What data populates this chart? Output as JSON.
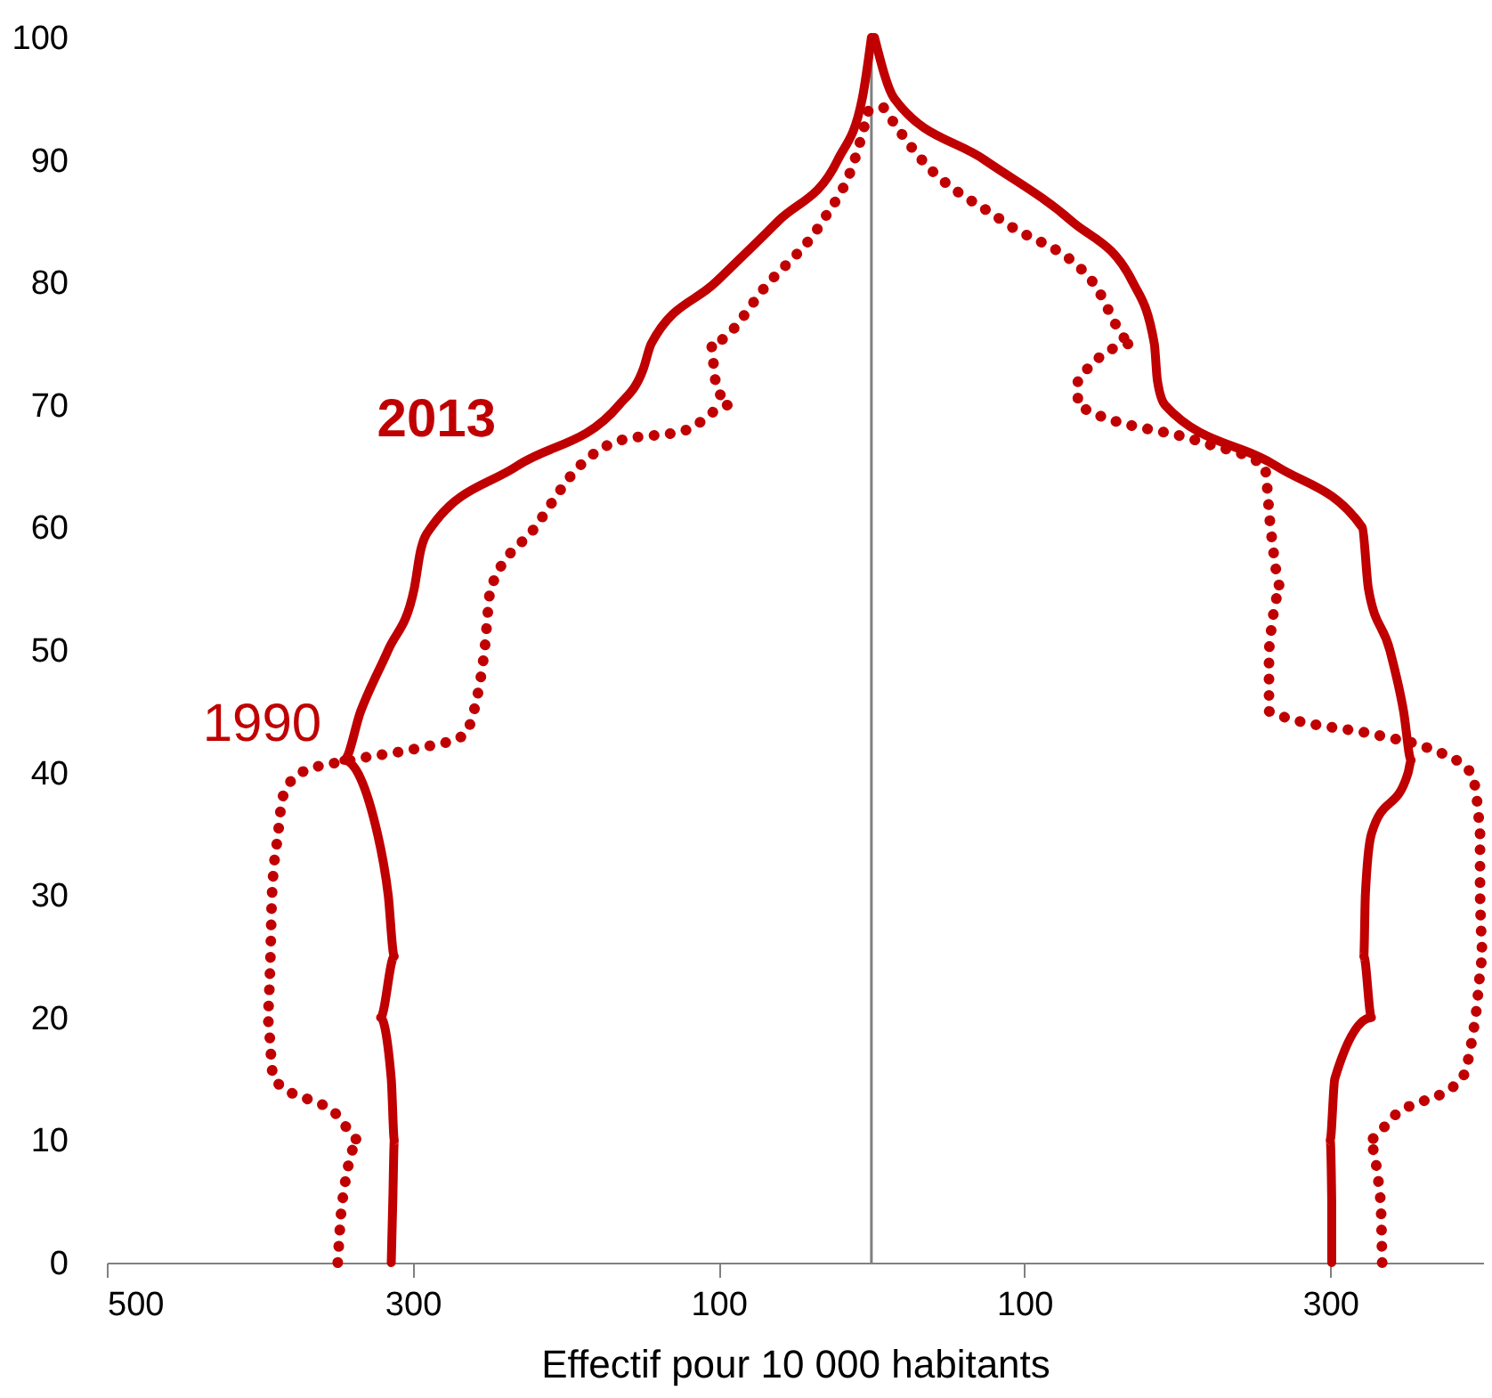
{
  "chart_data": {
    "type": "line",
    "xlabel": "Effectif pour 10 000 habitants",
    "xlim": [
      -500,
      400
    ],
    "xticks": [
      {
        "value": -500,
        "label": "500"
      },
      {
        "value": -300,
        "label": "300"
      },
      {
        "value": -100,
        "label": "100"
      },
      {
        "value": 100,
        "label": "100"
      },
      {
        "value": 300,
        "label": "300"
      }
    ],
    "ylim": [
      0,
      100
    ],
    "yticks": [
      0,
      10,
      20,
      30,
      40,
      50,
      60,
      70,
      80,
      90,
      100
    ],
    "marker": "none",
    "ref_lines": [
      {
        "axis": "x",
        "value": 0,
        "color": "#808080"
      }
    ],
    "series": [
      {
        "name": "2013",
        "color": "#c00000",
        "line_style": "solid",
        "x": [
          -314,
          -313,
          -312,
          -314,
          -321,
          -312,
          -316,
          -323,
          -345,
          -334,
          -316,
          -299,
          -295,
          -288,
          -232,
          -165,
          -149,
          -144,
          -102,
          -61,
          -22,
          -6,
          0
        ],
        "values": [
          0,
          5,
          10,
          15,
          20,
          25,
          30,
          35,
          41,
          45,
          50,
          55,
          58,
          60,
          65,
          70,
          73,
          75,
          80,
          85,
          90,
          95,
          100
        ]
      },
      {
        "color": "#c00000",
        "line_style": "solid",
        "x": [
          301,
          301,
          300,
          303,
          327,
          322,
          323,
          327,
          351,
          353,
          348,
          339,
          325,
          321,
          265,
          192,
          187,
          185,
          171,
          131,
          74,
          15,
          2
        ],
        "values": [
          0,
          5,
          10,
          15,
          20,
          25,
          30,
          35,
          40,
          41,
          45,
          50,
          55,
          60,
          65,
          70,
          72,
          75,
          80,
          85,
          90,
          95,
          100
        ]
      },
      {
        "name": "1990",
        "color": "#c00000",
        "line_style": "dotted",
        "x": [
          -349,
          -346,
          -335,
          -349,
          -391,
          -395,
          -393,
          -392,
          -388,
          -385,
          -373,
          -341,
          -296,
          -267,
          -260,
          -253,
          -249,
          -220,
          -191,
          -167,
          -120,
          -93,
          -102,
          -105,
          -67,
          -32,
          -11,
          0
        ],
        "values": [
          0,
          5,
          10,
          12,
          15,
          20,
          25,
          30,
          35,
          38,
          40,
          41,
          42,
          43,
          45,
          50,
          55,
          60,
          65,
          67,
          68,
          70,
          72,
          75,
          80,
          85,
          90,
          95
        ]
      },
      {
        "color": "#c00000",
        "line_style": "dotted",
        "x": [
          334,
          333,
          325,
          342,
          386,
          395,
          400,
          398,
          398,
          392,
          364,
          333,
          260,
          260,
          260,
          268,
          261,
          257,
          215,
          135,
          135,
          171,
          145,
          86,
          33,
          4
        ],
        "values": [
          0,
          5,
          10,
          12,
          15,
          20,
          25,
          30,
          35,
          40,
          42,
          43,
          45,
          48,
          50,
          55,
          60,
          65,
          67,
          70,
          72,
          75,
          80,
          85,
          90,
          95
        ]
      }
    ]
  }
}
